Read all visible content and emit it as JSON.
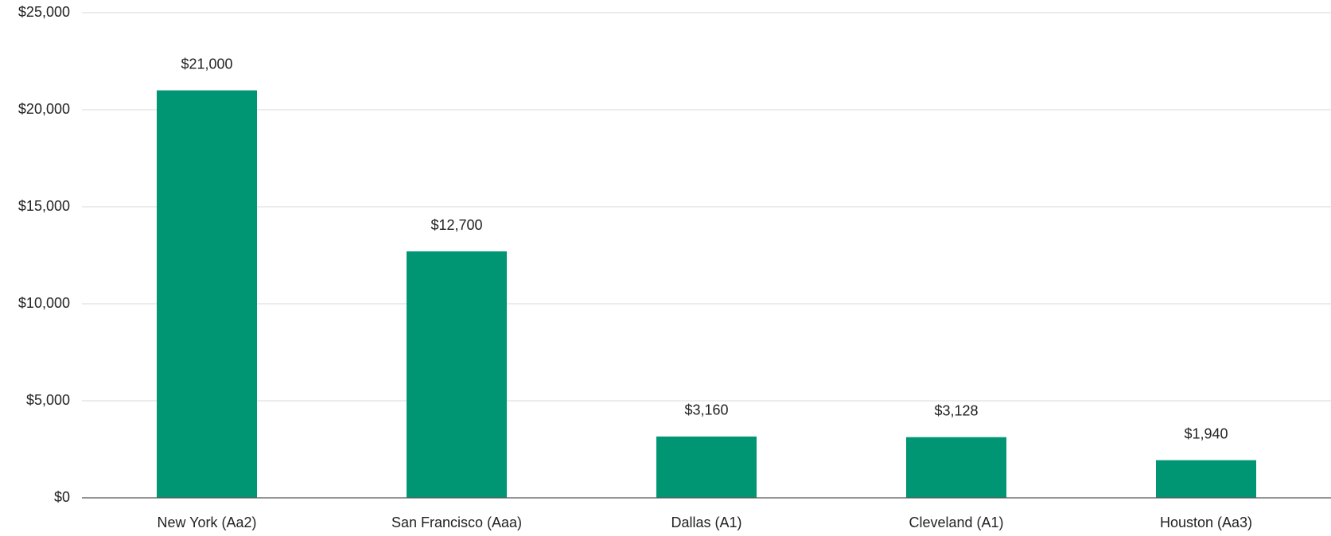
{
  "chart_data": {
    "type": "bar",
    "categories": [
      "New York (Aa2)",
      "San Francisco (Aaa)",
      "Dallas (A1)",
      "Cleveland (A1)",
      "Houston (Aa3)"
    ],
    "values": [
      21000,
      12700,
      3160,
      3128,
      1940
    ],
    "value_labels": [
      "$21,000",
      "$12,700",
      "$3,160",
      "$3,128",
      "$1,940"
    ],
    "color": "#009673",
    "ylim": [
      0,
      25000
    ],
    "yticks": [
      {
        "value": 0,
        "label": "$0"
      },
      {
        "value": 5000,
        "label": "$5,000"
      },
      {
        "value": 10000,
        "label": "$10,000"
      },
      {
        "value": 15000,
        "label": "$15,000"
      },
      {
        "value": 20000,
        "label": "$20,000"
      },
      {
        "value": 25000,
        "label": "$25,000"
      }
    ],
    "grid": true
  }
}
